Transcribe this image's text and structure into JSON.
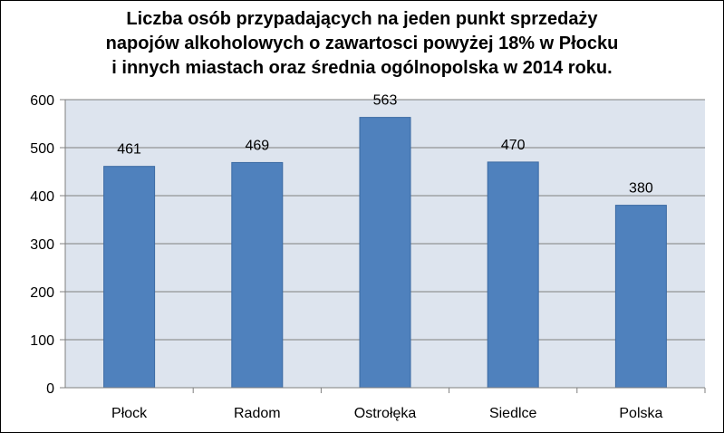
{
  "chart_data": {
    "type": "bar",
    "title_lines": [
      "Liczba osób przypadających na jeden punkt sprzedaży",
      "napojów alkoholowych o zawartosci powyżej 18% w Płocku",
      "i innych miastach oraz średnia ogólnopolska w 2014 roku."
    ],
    "categories": [
      "Płock",
      "Radom",
      "Ostrołęka",
      "Siedlce",
      "Polska"
    ],
    "values": [
      461,
      469,
      563,
      470,
      380
    ],
    "data_labels": [
      "461",
      "469",
      "563",
      "470",
      "380"
    ],
    "ylim": [
      0,
      600
    ],
    "yticks": [
      0,
      100,
      200,
      300,
      400,
      500,
      600
    ],
    "ytick_labels": [
      "0",
      "100",
      "200",
      "300",
      "400",
      "500",
      "600"
    ],
    "xlabel": "",
    "ylabel": "",
    "grid": true,
    "legend": "none",
    "colors": {
      "bar_fill": "#4f81bd",
      "bar_stroke": "#3b6aa3",
      "plot_background": "#dde4ee",
      "gridline": "#7f7f7f",
      "axis": "#7f7f7f",
      "text": "#000000"
    }
  }
}
